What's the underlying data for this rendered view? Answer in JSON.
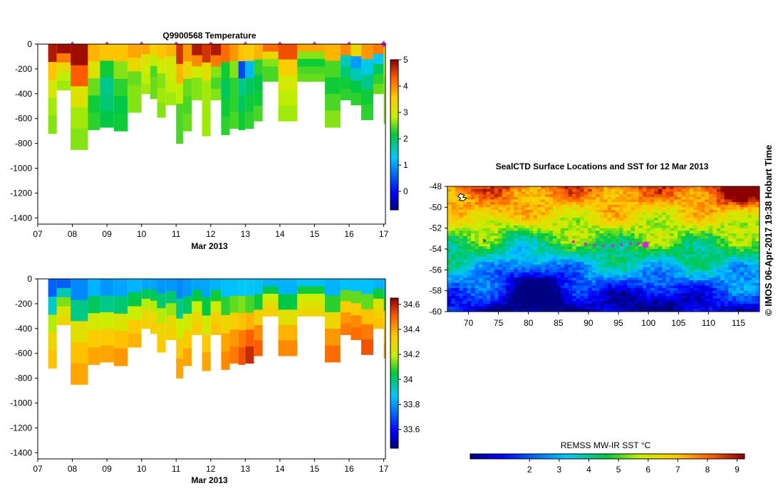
{
  "credit": "© IMOS 06-Apr-2017 19:38 Hobart Time",
  "chart_data": [
    {
      "id": "temperature",
      "type": "heatmap",
      "title": "Q9900568  Temperature",
      "xlabel": "Mar 2013",
      "ylabel": "",
      "xlim": [
        7,
        17.05
      ],
      "ylim": [
        -1450,
        0
      ],
      "xticks": [
        "07",
        "08",
        "09",
        "10",
        "11",
        "12",
        "13",
        "14",
        "15",
        "16",
        "17"
      ],
      "yticks": [
        0,
        -200,
        -400,
        -600,
        -800,
        -1000,
        -1200,
        -1400
      ],
      "colorbar": {
        "min": -0.7,
        "max": 5,
        "ticks": [
          0,
          1,
          2,
          3,
          4,
          5
        ],
        "labels": [
          "0",
          "1",
          "2",
          "3",
          "4",
          "5"
        ]
      },
      "profile_markers_x": [
        8,
        9,
        10,
        11,
        12,
        13,
        14,
        15,
        16,
        17
      ],
      "profiles": [
        {
          "x0": 7.3,
          "x1": 7.55,
          "depth": 720,
          "values": [
            4.8,
            3.6,
            3.0,
            2.7,
            2.6
          ]
        },
        {
          "x0": 7.55,
          "x1": 7.95,
          "depth": 370,
          "values": [
            4.9,
            4.1,
            3.3,
            2.8,
            2.7
          ]
        },
        {
          "x0": 7.95,
          "x1": 8.45,
          "depth": 850,
          "values": [
            4.9,
            4.3,
            3.1,
            2.7,
            2.6
          ]
        },
        {
          "x0": 8.45,
          "x1": 8.8,
          "depth": 690,
          "values": [
            3.7,
            3.1,
            2.5,
            2.2,
            2.3
          ]
        },
        {
          "x0": 8.8,
          "x1": 9.2,
          "depth": 670,
          "values": [
            3.6,
            2.2,
            1.8,
            1.9,
            2.1
          ]
        },
        {
          "x0": 9.2,
          "x1": 9.6,
          "depth": 700,
          "values": [
            3.6,
            2.6,
            2.3,
            2.1,
            2.2
          ]
        },
        {
          "x0": 9.6,
          "x1": 10.0,
          "depth": 550,
          "values": [
            3.8,
            3.3,
            2.5,
            2.6,
            2.6
          ]
        },
        {
          "x0": 10.0,
          "x1": 10.25,
          "depth": 400,
          "values": [
            3.8,
            3.1,
            2.9,
            2.8,
            2.7
          ]
        },
        {
          "x0": 10.25,
          "x1": 10.45,
          "depth": 440,
          "values": [
            3.4,
            2.8,
            2.4,
            2.5,
            2.5
          ]
        },
        {
          "x0": 10.45,
          "x1": 10.7,
          "depth": 590,
          "values": [
            3.6,
            2.9,
            2.6,
            2.7,
            2.6
          ]
        },
        {
          "x0": 10.7,
          "x1": 11.0,
          "depth": 490,
          "values": [
            3.7,
            3.0,
            2.9,
            2.8,
            2.7
          ]
        },
        {
          "x0": 11.0,
          "x1": 11.2,
          "depth": 800,
          "values": [
            4.6,
            3.7,
            2.8,
            2.4,
            2.4
          ]
        },
        {
          "x0": 11.2,
          "x1": 11.45,
          "depth": 700,
          "values": [
            3.9,
            3.3,
            2.5,
            2.4,
            2.5
          ]
        },
        {
          "x0": 11.45,
          "x1": 11.75,
          "depth": 450,
          "values": [
            4.8,
            4.0,
            2.9,
            2.6,
            2.6
          ]
        },
        {
          "x0": 11.75,
          "x1": 12.0,
          "depth": 740,
          "values": [
            4.6,
            3.2,
            2.7,
            2.7,
            2.7
          ]
        },
        {
          "x0": 12.0,
          "x1": 12.3,
          "depth": 450,
          "values": [
            4.8,
            4.1,
            2.6,
            2.4,
            2.6
          ]
        },
        {
          "x0": 12.3,
          "x1": 12.55,
          "depth": 730,
          "values": [
            4.2,
            2.2,
            2.0,
            2.2,
            2.3
          ]
        },
        {
          "x0": 12.55,
          "x1": 12.8,
          "depth": 680,
          "values": [
            3.9,
            2.6,
            2.3,
            2.3,
            2.4
          ]
        },
        {
          "x0": 12.8,
          "x1": 13.0,
          "depth": 690,
          "values": [
            3.6,
            0.4,
            1.8,
            2.0,
            2.2
          ]
        },
        {
          "x0": 13.0,
          "x1": 13.25,
          "depth": 680,
          "values": [
            3.5,
            1.2,
            2.0,
            2.2,
            2.3
          ]
        },
        {
          "x0": 13.25,
          "x1": 13.5,
          "depth": 620,
          "values": [
            3.7,
            2.3,
            2.1,
            2.2,
            2.4
          ]
        },
        {
          "x0": 13.5,
          "x1": 13.95,
          "depth": 300,
          "values": [
            4.2,
            3.3,
            2.6,
            2.4,
            2.4
          ]
        },
        {
          "x0": 13.95,
          "x1": 14.5,
          "depth": 620,
          "values": [
            4.4,
            3.5,
            3.0,
            2.8,
            2.7
          ]
        },
        {
          "x0": 14.5,
          "x1": 15.3,
          "depth": 300,
          "values": [
            3.8,
            2.6,
            2.2,
            2.4,
            2.5
          ]
        },
        {
          "x0": 15.3,
          "x1": 15.75,
          "depth": 670,
          "values": [
            3.7,
            2.4,
            2.2,
            2.4,
            2.6
          ]
        },
        {
          "x0": 15.75,
          "x1": 16.05,
          "depth": 450,
          "values": [
            4.0,
            1.6,
            1.9,
            2.2,
            2.3
          ]
        },
        {
          "x0": 16.05,
          "x1": 16.35,
          "depth": 490,
          "values": [
            3.3,
            1.0,
            1.6,
            2.1,
            2.3
          ]
        },
        {
          "x0": 16.35,
          "x1": 16.7,
          "depth": 610,
          "values": [
            3.9,
            1.4,
            1.8,
            2.2,
            2.3
          ]
        },
        {
          "x0": 16.7,
          "x1": 17.0,
          "depth": 400,
          "values": [
            4.1,
            1.3,
            2.0,
            2.3,
            2.5
          ]
        },
        {
          "x0": 17.0,
          "x1": 17.05,
          "depth": 640,
          "values": [
            3.2,
            2.8,
            2.6,
            2.6,
            2.6
          ]
        }
      ]
    },
    {
      "id": "salinity",
      "type": "heatmap",
      "title": "",
      "xlabel": "Mar 2013",
      "ylabel": "",
      "xlim": [
        7,
        17.05
      ],
      "ylim": [
        -1450,
        0
      ],
      "xticks": [
        "07",
        "08",
        "09",
        "10",
        "11",
        "12",
        "13",
        "14",
        "15",
        "16",
        "17"
      ],
      "yticks": [
        0,
        -200,
        -400,
        -600,
        -800,
        -1000,
        -1200,
        -1400
      ],
      "colorbar": {
        "min": 33.45,
        "max": 34.65,
        "ticks": [
          33.6,
          33.8,
          34.0,
          34.2,
          34.4,
          34.6
        ],
        "labels": [
          "33.6",
          "33.8",
          "34",
          "34.2",
          "34.4",
          "34.6"
        ]
      },
      "profiles": [
        {
          "x0": 7.3,
          "x1": 7.55,
          "depth": 720,
          "values": [
            33.72,
            33.92,
            34.18,
            34.3,
            34.36
          ]
        },
        {
          "x0": 7.55,
          "x1": 7.95,
          "depth": 370,
          "values": [
            33.72,
            33.94,
            34.14,
            34.24,
            34.3
          ]
        },
        {
          "x0": 7.95,
          "x1": 8.45,
          "depth": 850,
          "values": [
            33.78,
            33.98,
            34.26,
            34.36,
            34.4
          ]
        },
        {
          "x0": 8.45,
          "x1": 8.8,
          "depth": 690,
          "values": [
            33.84,
            34.02,
            34.22,
            34.34,
            34.4
          ]
        },
        {
          "x0": 8.8,
          "x1": 9.2,
          "depth": 670,
          "values": [
            33.8,
            33.98,
            34.2,
            34.34,
            34.4
          ]
        },
        {
          "x0": 9.2,
          "x1": 9.6,
          "depth": 700,
          "values": [
            33.82,
            34.0,
            34.24,
            34.36,
            34.42
          ]
        },
        {
          "x0": 9.6,
          "x1": 10.0,
          "depth": 550,
          "values": [
            33.84,
            34.04,
            34.2,
            34.34,
            34.38
          ]
        },
        {
          "x0": 10.0,
          "x1": 10.25,
          "depth": 400,
          "values": [
            33.82,
            34.02,
            34.18,
            34.28,
            34.32
          ]
        },
        {
          "x0": 10.25,
          "x1": 10.45,
          "depth": 440,
          "values": [
            33.82,
            34.02,
            34.18,
            34.28,
            34.32
          ]
        },
        {
          "x0": 10.45,
          "x1": 10.7,
          "depth": 590,
          "values": [
            33.8,
            34.0,
            34.18,
            34.3,
            34.34
          ]
        },
        {
          "x0": 10.7,
          "x1": 11.0,
          "depth": 490,
          "values": [
            33.8,
            34.0,
            34.16,
            34.28,
            34.32
          ]
        },
        {
          "x0": 11.0,
          "x1": 11.2,
          "depth": 800,
          "values": [
            33.78,
            33.98,
            34.2,
            34.34,
            34.4
          ]
        },
        {
          "x0": 11.2,
          "x1": 11.45,
          "depth": 700,
          "values": [
            33.8,
            34.02,
            34.22,
            34.34,
            34.4
          ]
        },
        {
          "x0": 11.45,
          "x1": 11.75,
          "depth": 450,
          "values": [
            33.82,
            34.04,
            34.2,
            34.3,
            34.34
          ]
        },
        {
          "x0": 11.75,
          "x1": 12.0,
          "depth": 740,
          "values": [
            33.82,
            34.04,
            34.22,
            34.34,
            34.4
          ]
        },
        {
          "x0": 12.0,
          "x1": 12.3,
          "depth": 450,
          "values": [
            33.84,
            34.06,
            34.22,
            34.32,
            34.36
          ]
        },
        {
          "x0": 12.3,
          "x1": 12.55,
          "depth": 730,
          "values": [
            33.86,
            34.08,
            34.3,
            34.4,
            34.44
          ]
        },
        {
          "x0": 12.55,
          "x1": 12.8,
          "depth": 680,
          "values": [
            33.86,
            34.12,
            34.32,
            34.42,
            34.46
          ]
        },
        {
          "x0": 12.8,
          "x1": 13.0,
          "depth": 690,
          "values": [
            33.88,
            34.14,
            34.36,
            34.46,
            34.52
          ]
        },
        {
          "x0": 13.0,
          "x1": 13.25,
          "depth": 680,
          "values": [
            33.88,
            34.1,
            34.38,
            34.5,
            34.58
          ]
        },
        {
          "x0": 13.25,
          "x1": 13.5,
          "depth": 620,
          "values": [
            33.86,
            34.06,
            34.32,
            34.44,
            34.5
          ]
        },
        {
          "x0": 13.5,
          "x1": 13.95,
          "depth": 300,
          "values": [
            33.84,
            34.04,
            34.2,
            34.28,
            34.32
          ]
        },
        {
          "x0": 13.95,
          "x1": 14.5,
          "depth": 620,
          "values": [
            33.84,
            34.04,
            34.26,
            34.38,
            34.44
          ]
        },
        {
          "x0": 14.5,
          "x1": 15.3,
          "depth": 300,
          "values": [
            33.86,
            34.06,
            34.2,
            34.26,
            34.3
          ]
        },
        {
          "x0": 15.3,
          "x1": 15.75,
          "depth": 670,
          "values": [
            33.84,
            34.08,
            34.3,
            34.42,
            34.48
          ]
        },
        {
          "x0": 15.75,
          "x1": 16.05,
          "depth": 450,
          "values": [
            33.86,
            34.12,
            34.34,
            34.42,
            34.46
          ]
        },
        {
          "x0": 16.05,
          "x1": 16.35,
          "depth": 490,
          "values": [
            33.86,
            34.12,
            34.34,
            34.44,
            34.48
          ]
        },
        {
          "x0": 16.35,
          "x1": 16.7,
          "depth": 610,
          "values": [
            33.86,
            34.12,
            34.36,
            34.46,
            34.52
          ]
        },
        {
          "x0": 16.7,
          "x1": 17.0,
          "depth": 400,
          "values": [
            33.84,
            34.06,
            34.24,
            34.32,
            34.36
          ]
        },
        {
          "x0": 17.0,
          "x1": 17.05,
          "depth": 640,
          "values": [
            33.84,
            34.06,
            34.26,
            34.36,
            34.42
          ]
        }
      ]
    },
    {
      "id": "sst_map",
      "type": "heatmap",
      "title": "SealCTD Surface Locations and SST for 12 Mar 2013",
      "xlabel": "",
      "ylabel": "",
      "xlim": [
        66.5,
        118.5
      ],
      "ylim": [
        -60,
        -48
      ],
      "xticks": [
        70,
        75,
        80,
        85,
        90,
        95,
        100,
        105,
        110,
        115
      ],
      "xtick_labels": [
        "70",
        "75",
        "80",
        "85",
        "90",
        "95",
        "100",
        "105",
        "110",
        "115"
      ],
      "yticks": [
        -48,
        -50,
        -52,
        -54,
        -56,
        -58,
        -60
      ],
      "ytick_labels": [
        "-48",
        "-50",
        "-52",
        "-54",
        "-56",
        "-58",
        "-60"
      ],
      "colorbar": {
        "label": "REMSS MW-IR SST °C",
        "min": 0,
        "max": 9.25,
        "ticks": [
          2,
          3,
          4,
          5,
          6,
          7,
          8,
          9
        ],
        "labels": [
          "2",
          "3",
          "4",
          "5",
          "6",
          "7",
          "8",
          "9"
        ]
      },
      "track": [
        {
          "lon": 87.5,
          "lat": -53.3
        },
        {
          "lon": 89.5,
          "lat": -53.5
        },
        {
          "lon": 91.0,
          "lat": -53.6
        },
        {
          "lon": 92.5,
          "lat": -53.7
        },
        {
          "lon": 94.0,
          "lat": -53.7
        },
        {
          "lon": 95.5,
          "lat": -53.6
        },
        {
          "lon": 97.0,
          "lat": -53.5
        },
        {
          "lon": 98.3,
          "lat": -53.5
        }
      ],
      "current_position": {
        "lon": 99.5,
        "lat": -53.6
      }
    }
  ]
}
